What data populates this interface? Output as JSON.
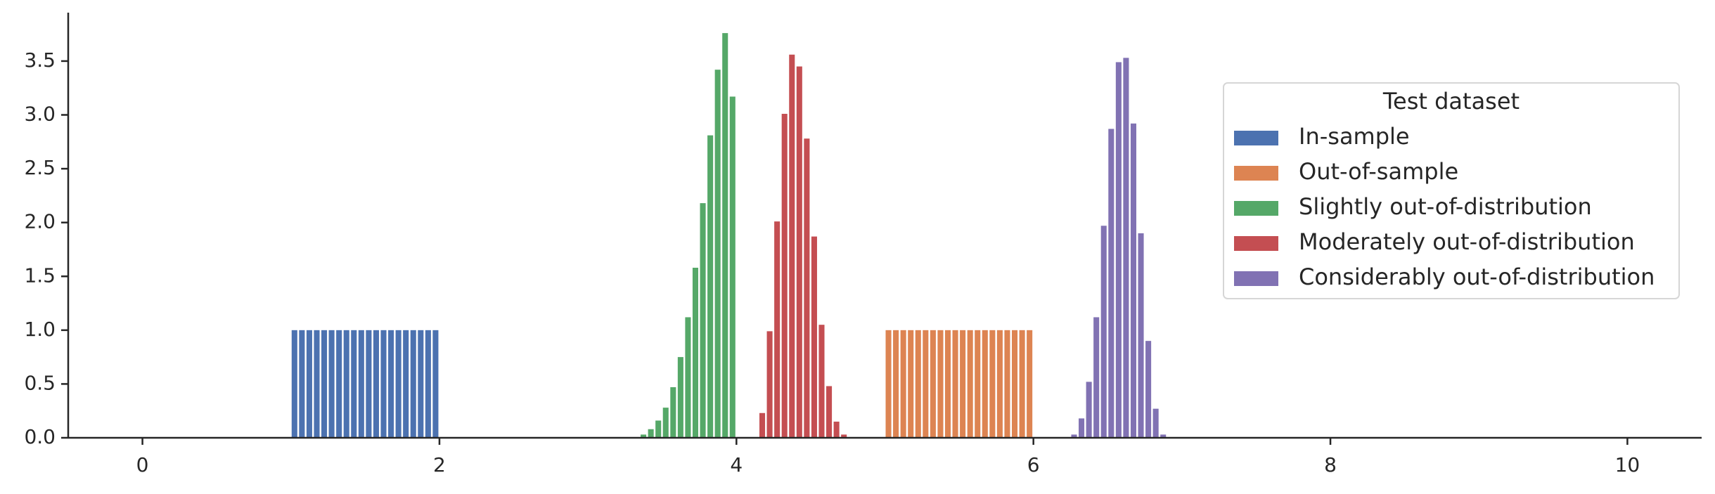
{
  "chart_data": {
    "type": "histogram",
    "legend_title": "Test dataset",
    "legend": "upper right",
    "xlim": [
      -0.5,
      10.5
    ],
    "xticks": [
      0,
      2,
      4,
      6,
      8,
      10
    ],
    "ylim": [
      0,
      3.95
    ],
    "yticks": [
      {
        "value": 0,
        "label": "0.0"
      },
      0.5,
      {
        "value": 1,
        "label": "1.0"
      },
      1.5,
      {
        "value": 2,
        "label": "2.0"
      },
      2.5,
      {
        "value": 3,
        "label": "3.0"
      },
      3.5
    ],
    "series": [
      {
        "name": "In-sample",
        "color": "#4c72b0",
        "bins": [
          1,
          1.05,
          1.1,
          1.15,
          1.2,
          1.25,
          1.3,
          1.35,
          1.4,
          1.45,
          1.5,
          1.55,
          1.6,
          1.65,
          1.7,
          1.75,
          1.8,
          1.85,
          1.9,
          1.95,
          2
        ],
        "values": [
          1,
          1,
          1,
          1,
          1,
          1,
          1,
          1,
          1,
          1,
          1,
          1,
          1,
          1,
          1,
          1,
          1,
          1,
          1,
          1
        ]
      },
      {
        "name": "Out-of-sample",
        "color": "#dd8452",
        "bins": [
          5,
          5.05,
          5.1,
          5.15,
          5.2,
          5.25,
          5.3,
          5.35,
          5.4,
          5.45,
          5.5,
          5.55,
          5.6,
          5.65,
          5.7,
          5.75,
          5.8,
          5.85,
          5.9,
          5.95,
          6
        ],
        "values": [
          1,
          1,
          1,
          1,
          1,
          1,
          1,
          1,
          1,
          1,
          1,
          1,
          1,
          1,
          1,
          1,
          1,
          1,
          1,
          1
        ]
      },
      {
        "name": "Slightly out-of-distribution",
        "color": "#55a868",
        "bins": [
          3.35,
          3.4,
          3.45,
          3.5,
          3.55,
          3.6,
          3.65,
          3.7,
          3.75,
          3.8,
          3.85,
          3.9,
          3.95,
          4.0
        ],
        "values": [
          0.03,
          0.08,
          0.16,
          0.28,
          0.47,
          0.75,
          1.12,
          1.58,
          2.18,
          2.81,
          3.42,
          3.76,
          3.17
        ]
      },
      {
        "name": "Moderately out-of-distribution",
        "color": "#c44e52",
        "bins": [
          4.15,
          4.2,
          4.25,
          4.3,
          4.35,
          4.4,
          4.45,
          4.5,
          4.55,
          4.6,
          4.65,
          4.7,
          4.75
        ],
        "values": [
          0.23,
          0.99,
          2.01,
          3.01,
          3.56,
          3.45,
          2.78,
          1.87,
          1.05,
          0.48,
          0.15,
          0.03
        ]
      },
      {
        "name": "Considerably out-of-distribution",
        "color": "#8172b3",
        "bins": [
          6.25,
          6.3,
          6.35,
          6.4,
          6.45,
          6.5,
          6.55,
          6.6,
          6.65,
          6.7,
          6.75,
          6.8,
          6.85,
          6.9
        ],
        "values": [
          0.03,
          0.18,
          0.52,
          1.12,
          1.97,
          2.87,
          3.49,
          3.53,
          2.92,
          1.9,
          0.9,
          0.27,
          0.03
        ]
      }
    ]
  }
}
